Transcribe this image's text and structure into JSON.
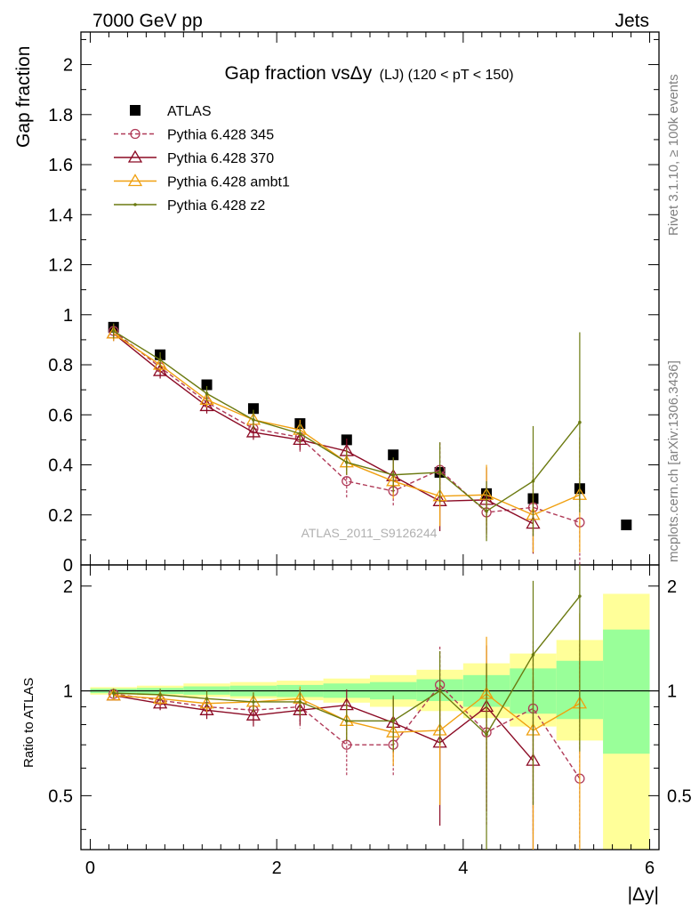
{
  "header": {
    "energy_label": "7000 GeV pp",
    "process_label": "Jets",
    "rivet_label": "Rivet 3.1.10, ≥ 100k events",
    "mcplots_label": "mcplots.cern.ch [arXiv:1306.3436]",
    "analysis_label": "ATLAS_2011_S9126244"
  },
  "chart_data": [
    {
      "type": "scatter",
      "panel": "main",
      "title": "Gap fraction vsΔy",
      "title_small": "(LJ) (120 < pT < 150)",
      "xlabel": "|Δy|",
      "ylabel": "Gap fraction",
      "xlim": [
        -0.1,
        6.1
      ],
      "ylim": [
        0,
        2.13
      ],
      "yticks": [
        0,
        0.2,
        0.4,
        0.6,
        0.8,
        1,
        1.2,
        1.4,
        1.6,
        1.8,
        2
      ],
      "ytick_labels": [
        "0",
        "0.2",
        "0.4",
        "0.6",
        "0.8",
        "1",
        "1.2",
        "1.4",
        "1.6",
        "1.8",
        "2"
      ],
      "legend_position": "top-left",
      "x": [
        0.25,
        0.75,
        1.25,
        1.75,
        2.25,
        2.75,
        3.25,
        3.75,
        4.25,
        4.75,
        5.25,
        5.75
      ],
      "series": [
        {
          "name": "ATLAS",
          "color": "#000000",
          "marker": "square",
          "line": "none",
          "values": [
            0.95,
            0.84,
            0.72,
            0.625,
            0.565,
            0.5,
            0.44,
            0.37,
            0.285,
            0.265,
            0.305,
            0.16
          ]
        },
        {
          "name": "Pythia 6.428 345",
          "color": "#b03a58",
          "marker": "circle-open",
          "line": "dashed",
          "values": [
            0.935,
            0.79,
            0.65,
            0.545,
            0.51,
            0.335,
            0.295,
            0.38,
            0.21,
            0.23,
            0.17
          ],
          "errors": [
            0.03,
            0.03,
            0.03,
            0.03,
            0.06,
            0.07,
            0.06,
            0.11,
            0.1,
            0.18,
            0.34
          ]
        },
        {
          "name": "Pythia 6.428 370",
          "color": "#8b0a24",
          "marker": "triangle-open",
          "line": "solid",
          "values": [
            0.925,
            0.775,
            0.635,
            0.53,
            0.5,
            0.455,
            0.355,
            0.255,
            0.26,
            0.165
          ],
          "errors": [
            0.03,
            0.03,
            0.03,
            0.03,
            0.04,
            0.05,
            0.07,
            0.12,
            0.13,
            0.12
          ]
        },
        {
          "name": "Pythia 6.428 ambt1",
          "color": "#f0a010",
          "marker": "triangle-open",
          "line": "solid",
          "values": [
            0.925,
            0.8,
            0.66,
            0.58,
            0.54,
            0.41,
            0.335,
            0.275,
            0.28,
            0.2,
            0.28
          ],
          "errors": [
            0.03,
            0.03,
            0.03,
            0.03,
            0.04,
            0.05,
            0.07,
            0.12,
            0.12,
            0.15,
            0.23
          ]
        },
        {
          "name": "Pythia 6.428 z2",
          "color": "#6b7a10",
          "marker": "dot",
          "line": "solid",
          "values": [
            0.935,
            0.82,
            0.685,
            0.58,
            0.525,
            0.41,
            0.36,
            0.37,
            0.215,
            0.335,
            0.57
          ],
          "errors": [
            0.03,
            0.03,
            0.03,
            0.04,
            0.04,
            0.05,
            0.07,
            0.12,
            0.12,
            0.22,
            0.36
          ]
        }
      ]
    },
    {
      "type": "scatter",
      "panel": "ratio",
      "ylabel": "Ratio to ATLAS",
      "xlabel": "|Δy|",
      "xlim": [
        -0.1,
        6.1
      ],
      "ylim": [
        0.35,
        2.3
      ],
      "yscale": "log",
      "xticks": [
        0,
        2,
        4,
        6
      ],
      "xtick_labels": [
        "0",
        "2",
        "4",
        "6"
      ],
      "yticks": [
        0.5,
        1,
        2
      ],
      "ytick_labels": [
        "0.5",
        "1",
        "2"
      ],
      "x": [
        0.25,
        0.75,
        1.25,
        1.75,
        2.25,
        2.75,
        3.25,
        3.75,
        4.25,
        4.75,
        5.25,
        5.75
      ],
      "band_inner": [
        [
          0.985,
          1.015
        ],
        [
          0.98,
          1.02
        ],
        [
          0.975,
          1.03
        ],
        [
          0.965,
          1.035
        ],
        [
          0.96,
          1.04
        ],
        [
          0.955,
          1.05
        ],
        [
          0.945,
          1.06
        ],
        [
          0.935,
          1.08
        ],
        [
          0.9,
          1.11
        ],
        [
          0.86,
          1.16
        ],
        [
          0.83,
          1.22
        ],
        [
          0.66,
          1.5
        ]
      ],
      "band_outer": [
        [
          0.975,
          1.025
        ],
        [
          0.97,
          1.035
        ],
        [
          0.96,
          1.05
        ],
        [
          0.95,
          1.06
        ],
        [
          0.94,
          1.07
        ],
        [
          0.925,
          1.085
        ],
        [
          0.9,
          1.11
        ],
        [
          0.875,
          1.15
        ],
        [
          0.835,
          1.2
        ],
        [
          0.79,
          1.28
        ],
        [
          0.72,
          1.4
        ],
        [
          0.35,
          1.9
        ]
      ],
      "series": [
        {
          "name": "Pythia 6.428 345",
          "color": "#b03a58",
          "marker": "circle-open",
          "line": "dashed",
          "values": [
            0.98,
            0.94,
            0.9,
            0.88,
            0.9,
            0.7,
            0.7,
            1.04,
            0.76,
            0.89,
            0.56
          ],
          "errors": [
            0.03,
            0.04,
            0.05,
            0.06,
            0.12,
            0.13,
            0.13,
            0.3,
            0.35,
            0.5,
            0.8
          ]
        },
        {
          "name": "Pythia 6.428 370",
          "color": "#8b0a24",
          "marker": "triangle-open",
          "line": "solid",
          "values": [
            0.97,
            0.92,
            0.88,
            0.85,
            0.88,
            0.91,
            0.81,
            0.71,
            0.9,
            0.63
          ],
          "errors": [
            0.03,
            0.04,
            0.05,
            0.06,
            0.08,
            0.1,
            0.15,
            0.3,
            0.45,
            0.45
          ]
        },
        {
          "name": "Pythia 6.428 ambt1",
          "color": "#f0a010",
          "marker": "triangle-open",
          "line": "solid",
          "values": [
            0.97,
            0.95,
            0.92,
            0.93,
            0.95,
            0.82,
            0.76,
            0.77,
            0.98,
            0.77,
            0.92
          ],
          "errors": [
            0.03,
            0.04,
            0.05,
            0.06,
            0.08,
            0.1,
            0.15,
            0.3,
            0.45,
            0.55,
            0.75
          ]
        },
        {
          "name": "Pythia 6.428 z2",
          "color": "#6b7a10",
          "marker": "dot",
          "line": "solid",
          "values": [
            0.985,
            0.975,
            0.95,
            0.93,
            0.93,
            0.82,
            0.82,
            1.0,
            0.75,
            1.27,
            1.87
          ],
          "errors": [
            0.03,
            0.04,
            0.05,
            0.06,
            0.08,
            0.1,
            0.15,
            0.3,
            0.45,
            0.8,
            1.2
          ]
        }
      ]
    }
  ]
}
